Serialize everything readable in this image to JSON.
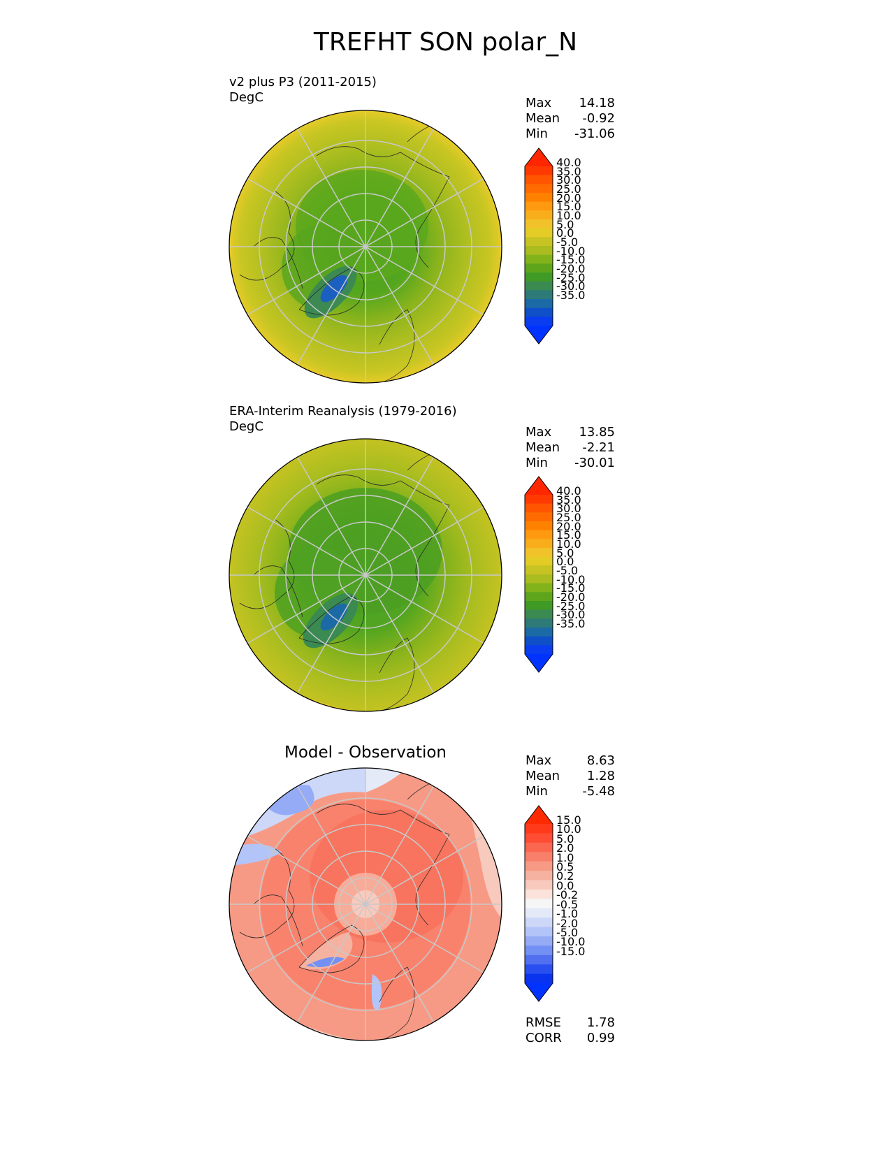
{
  "title": "TREFHT SON polar_N",
  "panels": [
    {
      "title": "v2 plus P3 (2011-2015)",
      "units": "DegC",
      "stats": [
        {
          "label": "Max",
          "value": "14.18"
        },
        {
          "label": "Mean",
          "value": "-0.92"
        },
        {
          "label": "Min",
          "value": "-31.06"
        }
      ],
      "colorbar_ticks": [
        "40.0",
        "35.0",
        "30.0",
        "25.0",
        "20.0",
        "15.0",
        "10.0",
        "5.0",
        "0.0",
        "-5.0",
        "-10.0",
        "-15.0",
        "-20.0",
        "-25.0",
        "-30.0",
        "-35.0"
      ],
      "colorbar_colors": [
        "#ff3a00",
        "#ff5500",
        "#ff6b00",
        "#ff8100",
        "#ff9a10",
        "#f7ae1a",
        "#f1c22a",
        "#e3cc25",
        "#c7c323",
        "#aabc1f",
        "#82b31b",
        "#5ea51c",
        "#3f9a26",
        "#3a8a52",
        "#2d7a78",
        "#1b6aa6",
        "#0f50c8",
        "#0a3cf0"
      ],
      "extend_colors": {
        "top": "#ff2600",
        "bottom": "#0033ff"
      }
    },
    {
      "title": "ERA-Interim Reanalysis (1979-2016)",
      "units": "DegC",
      "stats": [
        {
          "label": "Max",
          "value": "13.85"
        },
        {
          "label": "Mean",
          "value": "-2.21"
        },
        {
          "label": "Min",
          "value": "-30.01"
        }
      ],
      "colorbar_ticks": [
        "40.0",
        "35.0",
        "30.0",
        "25.0",
        "20.0",
        "15.0",
        "10.0",
        "5.0",
        "0.0",
        "-5.0",
        "-10.0",
        "-15.0",
        "-20.0",
        "-25.0",
        "-30.0",
        "-35.0"
      ],
      "colorbar_colors": [
        "#ff3a00",
        "#ff5500",
        "#ff6b00",
        "#ff8100",
        "#ff9a10",
        "#f7ae1a",
        "#f1c22a",
        "#e3cc25",
        "#c7c323",
        "#aabc1f",
        "#82b31b",
        "#5ea51c",
        "#3f9a26",
        "#3a8a52",
        "#2d7a78",
        "#1b6aa6",
        "#0f50c8",
        "#0a3cf0"
      ],
      "extend_colors": {
        "top": "#ff2600",
        "bottom": "#0033ff"
      }
    },
    {
      "title": "Model - Observation",
      "units": "",
      "stats": [
        {
          "label": "Max",
          "value": "8.63"
        },
        {
          "label": "Mean",
          "value": "1.28"
        },
        {
          "label": "Min",
          "value": "-5.48"
        }
      ],
      "colorbar_ticks": [
        "15.0",
        "10.0",
        "5.0",
        "2.0",
        "1.0",
        "0.5",
        "0.2",
        "0.0",
        "-0.2",
        "-0.5",
        "-1.0",
        "-2.0",
        "-5.0",
        "-10.0",
        "-15.0"
      ],
      "colorbar_colors": [
        "#ff3a1a",
        "#ff4d33",
        "#fb6650",
        "#f8806a",
        "#f79a85",
        "#f6b2a0",
        "#f8cabd",
        "#fbe3db",
        "#f6f6f6",
        "#e4eaf8",
        "#cdd8f8",
        "#b3c4f8",
        "#95abf6",
        "#7390f4",
        "#5070f0",
        "#2a4ff0",
        "#0a33f0"
      ],
      "extend_colors": {
        "top": "#ff2a00",
        "bottom": "#0033ff"
      },
      "metrics": [
        {
          "label": "RMSE",
          "value": "1.78"
        },
        {
          "label": "CORR",
          "value": "0.99"
        }
      ]
    }
  ],
  "chart_data": [
    {
      "type": "heatmap",
      "projection": "north polar stereographic",
      "title": "v2 plus P3 (2011-2015)",
      "units": "DegC",
      "stats": {
        "max": 14.18,
        "mean": -0.92,
        "min": -31.06
      },
      "levels": [
        -35,
        -30,
        -25,
        -20,
        -15,
        -10,
        -5,
        0,
        5,
        10,
        15,
        20,
        25,
        30,
        35,
        40
      ],
      "field_description": {
        "pole": -15,
        "greenland": -30,
        "siberia": -10,
        "north_america": -8,
        "outer_ring": 5,
        "rim": 10
      }
    },
    {
      "type": "heatmap",
      "projection": "north polar stereographic",
      "title": "ERA-Interim Reanalysis (1979-2016)",
      "units": "DegC",
      "stats": {
        "max": 13.85,
        "mean": -2.21,
        "min": -30.01
      },
      "levels": [
        -35,
        -30,
        -25,
        -20,
        -15,
        -10,
        -5,
        0,
        5,
        10,
        15,
        20,
        25,
        30,
        35,
        40
      ],
      "field_description": {
        "pole": -15,
        "greenland": -30,
        "siberia": -12,
        "north_america": -10,
        "outer_ring": 2,
        "rim": 8
      }
    },
    {
      "type": "heatmap",
      "projection": "north polar stereographic",
      "title": "Model - Observation",
      "stats": {
        "max": 8.63,
        "mean": 1.28,
        "min": -5.48
      },
      "metrics": {
        "rmse": 1.78,
        "corr": 0.99
      },
      "levels": [
        -15,
        -10,
        -5,
        -2,
        -1,
        -0.5,
        -0.2,
        0,
        0.2,
        0.5,
        1,
        2,
        5,
        10,
        15
      ]
    }
  ]
}
